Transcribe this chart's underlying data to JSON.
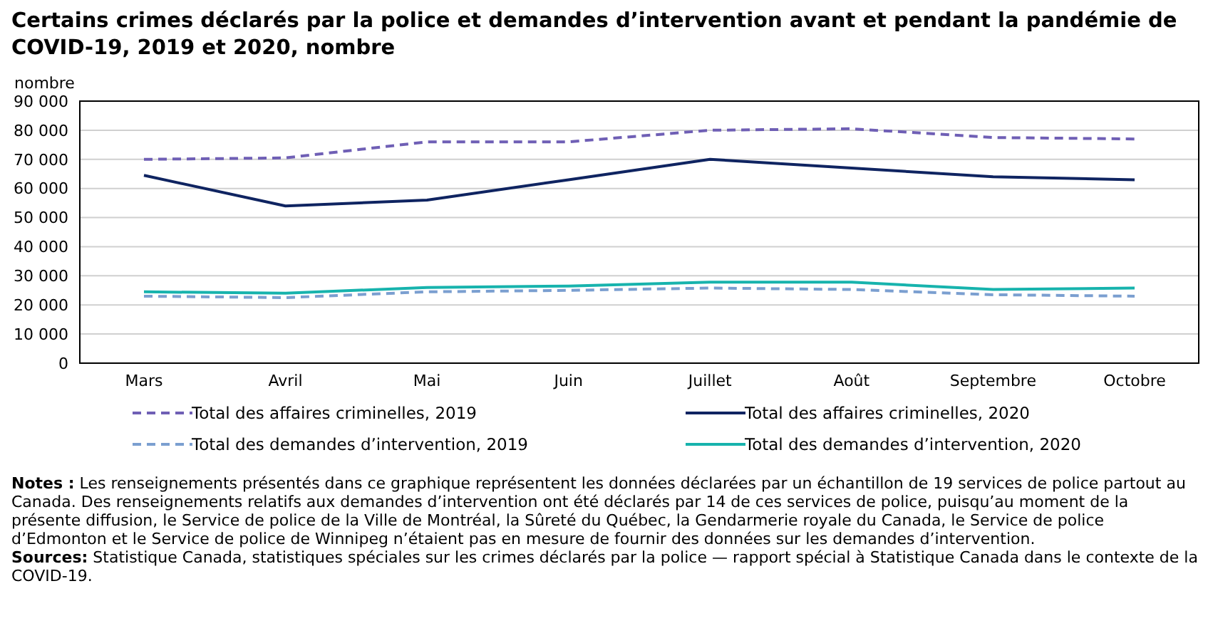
{
  "chart_data": {
    "type": "line",
    "title": "Certains crimes déclarés par la police et demandes d’intervention avant et pendant la pandémie de COVID-19, 2019 et 2020, nombre",
    "ylabel": "nombre",
    "categories": [
      "Mars",
      "Avril",
      "Mai",
      "Juin",
      "Juillet",
      "Août",
      "Septembre",
      "Octobre"
    ],
    "series": [
      {
        "name": "Total des affaires criminelles, 2019",
        "color": "#6f5fb5",
        "line_style": "dashed",
        "values": [
          70000,
          70500,
          76000,
          76000,
          80000,
          80500,
          77500,
          77000
        ]
      },
      {
        "name": "Total des affaires criminelles, 2020",
        "color": "#0f2461",
        "line_style": "solid",
        "values": [
          64500,
          54000,
          56000,
          63000,
          70000,
          67000,
          64000,
          63000
        ]
      },
      {
        "name": "Total des demandes d’intervention, 2019",
        "color": "#7b9fd0",
        "line_style": "dashed",
        "values": [
          23000,
          22500,
          24500,
          25000,
          25800,
          25300,
          23500,
          23000
        ]
      },
      {
        "name": "Total des demandes d’intervention, 2020",
        "color": "#17b3ad",
        "line_style": "solid",
        "values": [
          24500,
          24000,
          26000,
          26500,
          27800,
          27800,
          25300,
          25800
        ]
      }
    ],
    "ylim": [
      0,
      90000
    ],
    "yticks": [
      0,
      10000,
      20000,
      30000,
      40000,
      50000,
      60000,
      70000,
      80000,
      90000
    ],
    "grid": "y",
    "legend": "bottom",
    "marker": "none",
    "annotations": [
      "Notes : Les renseignements présentés dans ce graphique représentent les données déclarées par un échantillon de 19 services de police partout au Canada. Des renseignements relatifs aux demandes d’intervention ont été déclarés par 14 de ces services de police, puisqu’au moment de la présente diffusion, le Service de police de la Ville de Montréal, la Sûreté du Québec, la Gendarmerie royale du Canada, le Service de police d’Edmonton et le Service de police de Winnipeg n’étaient pas en mesure de fournir des données sur les demandes d’intervention.",
      "Sources: Statistique Canada, statistiques spéciales sur les crimes déclarés par la police — rapport spécial à Statistique Canada dans le contexte de la COVID-19."
    ]
  }
}
